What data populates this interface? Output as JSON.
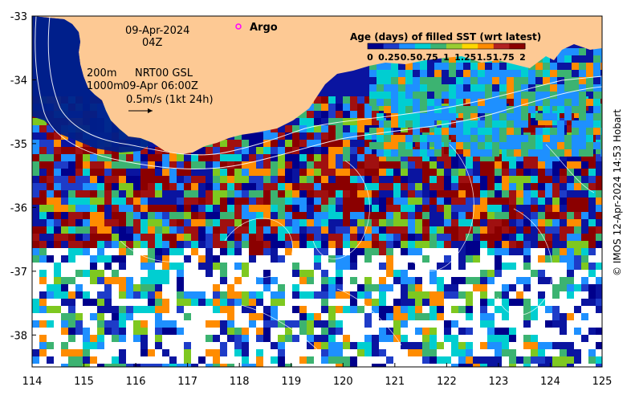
{
  "map": {
    "date": "09-Apr-2024",
    "hour": "04Z",
    "argo_label": "Argo",
    "contour_label_200": "200m",
    "contour_label_1000": "1000m",
    "source_label": "NRT00 GSL",
    "current_time": "09-Apr 06:00Z",
    "vector_scale": "0.5m/s (1kt 24h)",
    "credit": "© IMOS 12-Apr-2024 14:53 Hobart",
    "x_ticks": [
      "114",
      "115",
      "116",
      "117",
      "118",
      "119",
      "120",
      "121",
      "122",
      "123",
      "124",
      "125"
    ],
    "y_ticks": [
      "-33",
      "-34",
      "-35",
      "-36",
      "-37",
      "-38"
    ],
    "lon_range": [
      114,
      125
    ],
    "lat_range": [
      -38.5,
      -33
    ],
    "colorbar": {
      "title": "Age (days) of filled SST (wrt latest)",
      "tick_labels": [
        "0",
        "0.25",
        "0.5",
        "0.75",
        "1",
        "1.25",
        "1.5",
        "1.75",
        "2"
      ],
      "colors": [
        "#00008b",
        "#1e3cc8",
        "#1e90ff",
        "#00ced1",
        "#3cb371",
        "#9acd32",
        "#ffd700",
        "#ff8c00",
        "#b22222",
        "#8b0000"
      ]
    },
    "land_color": "#fdc994",
    "argo_color": "#ff00ff"
  }
}
